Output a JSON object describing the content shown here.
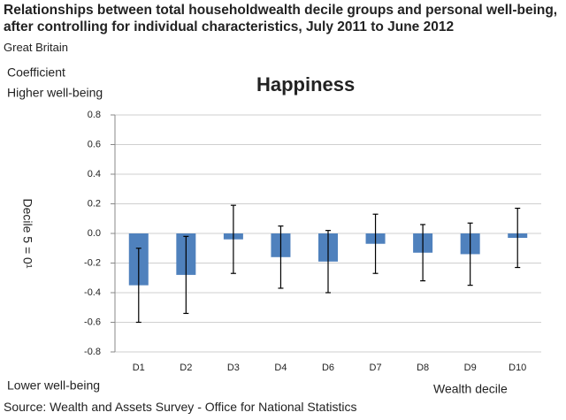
{
  "chart_data": {
    "type": "bar",
    "title": "Relationships between total householdwealth decile groups and personal well-being, after controlling for individual characteristics, July 2011 to June 2012",
    "subtitle": "Great Britain",
    "chart_title": "Happiness",
    "y_label_top": "Coefficient",
    "y_label_high": "Higher well-being",
    "y_label_low": "Lower well-being",
    "y_axis_label": "Decile 5 = 0¹",
    "x_axis_label": "Wealth decile",
    "source": "Source: Wealth and Assets Survey - Office for National Statistics",
    "categories": [
      "D1",
      "D2",
      "D3",
      "D4",
      "D6",
      "D7",
      "D8",
      "D9",
      "D10"
    ],
    "values": [
      -0.35,
      -0.28,
      -0.04,
      -0.16,
      -0.19,
      -0.07,
      -0.13,
      -0.14,
      -0.03
    ],
    "errors": [
      0.25,
      0.26,
      0.23,
      0.21,
      0.21,
      0.2,
      0.19,
      0.21,
      0.2
    ],
    "color": "#4f81bd",
    "error_color": "#000000",
    "ylim": [
      -0.8,
      0.8
    ],
    "yticks": [
      0.8,
      0.6,
      0.4,
      0.2,
      {
        "value": 0,
        "label": "0.0"
      },
      -0.2,
      -0.4,
      -0.6,
      -0.8
    ],
    "grid": true
  }
}
